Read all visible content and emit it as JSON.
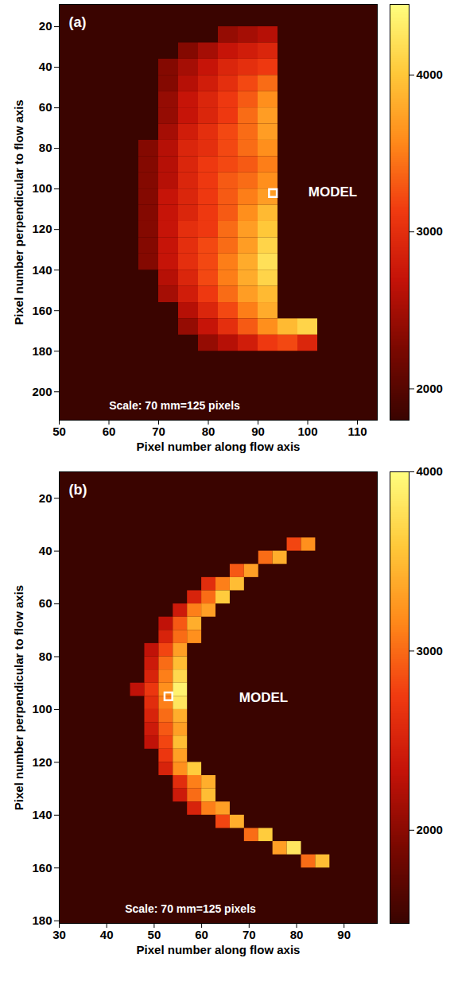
{
  "chart_data": [
    {
      "type": "heatmap",
      "panel_label": "(a)",
      "x_label": "Pixel number along flow axis",
      "y_label": "Pixel number perpendicular to flow axis",
      "xlim": [
        50,
        114
      ],
      "xticks": [
        50,
        60,
        70,
        80,
        90,
        100,
        110
      ],
      "ylim": [
        9,
        214
      ],
      "yticks": [
        20,
        40,
        60,
        80,
        100,
        120,
        140,
        160,
        180,
        200
      ],
      "x_edges": [
        66,
        70,
        74,
        78,
        82,
        86,
        90,
        94,
        98,
        102
      ],
      "y_edges": [
        20,
        28,
        36,
        44,
        52,
        60,
        68,
        76,
        84,
        92,
        100,
        108,
        116,
        124,
        132,
        140,
        148,
        156,
        164,
        172,
        180
      ],
      "cells": [
        [
          null,
          null,
          null,
          null,
          2400,
          2500,
          2600,
          null,
          null
        ],
        [
          null,
          null,
          2300,
          2500,
          2700,
          2800,
          2900,
          null,
          null
        ],
        [
          null,
          2300,
          2500,
          2700,
          2900,
          3000,
          3100,
          null,
          null
        ],
        [
          null,
          2300,
          2600,
          2800,
          3000,
          3200,
          3400,
          null,
          null
        ],
        [
          null,
          2400,
          2700,
          2900,
          3100,
          3300,
          3600,
          null,
          null
        ],
        [
          null,
          2400,
          2700,
          2900,
          3100,
          3400,
          3700,
          null,
          null
        ],
        [
          null,
          2500,
          2800,
          3000,
          3200,
          3400,
          3700,
          null,
          null
        ],
        [
          2300,
          2600,
          2900,
          3000,
          3200,
          3400,
          3600,
          null,
          null
        ],
        [
          2300,
          2600,
          2900,
          3100,
          3200,
          3300,
          3500,
          null,
          null
        ],
        [
          2300,
          2600,
          2900,
          3100,
          3300,
          3400,
          3600,
          null,
          null
        ],
        [
          2300,
          2700,
          2900,
          3100,
          3300,
          3500,
          3700,
          null,
          null
        ],
        [
          2300,
          2700,
          2900,
          3100,
          3300,
          3600,
          3900,
          null,
          null
        ],
        [
          2300,
          2700,
          3000,
          3100,
          3400,
          3700,
          4000,
          null,
          null
        ],
        [
          2300,
          2700,
          3000,
          3200,
          3400,
          3700,
          4100,
          null,
          null
        ],
        [
          2300,
          2700,
          3000,
          3200,
          3500,
          3800,
          4200,
          null,
          null
        ],
        [
          null,
          2600,
          2900,
          3200,
          3500,
          3800,
          4100,
          null,
          null
        ],
        [
          null,
          2500,
          2800,
          3100,
          3400,
          3700,
          3900,
          null,
          null
        ],
        [
          null,
          null,
          2600,
          2900,
          3200,
          3500,
          3800,
          null,
          null
        ],
        [
          null,
          null,
          2400,
          2700,
          3000,
          3300,
          3600,
          3900,
          4100
        ],
        [
          null,
          null,
          null,
          2400,
          2600,
          2800,
          3100,
          3200,
          2900
        ]
      ],
      "colorbar": {
        "range": [
          1800,
          4450
        ],
        "ticks": [
          2000,
          3000,
          4000
        ]
      },
      "marker_point": {
        "x": 93,
        "y": 102
      },
      "model_label": "MODEL",
      "scale_note": "Scale: 70 mm=125 pixels"
    },
    {
      "type": "heatmap",
      "panel_label": "(b)",
      "x_label": "Pixel number along flow axis",
      "y_label": "Pixel number perpendicular to flow axis",
      "xlim": [
        30,
        97
      ],
      "xticks": [
        30,
        40,
        50,
        60,
        70,
        80,
        90
      ],
      "ylim": [
        10,
        181
      ],
      "yticks": [
        20,
        40,
        60,
        80,
        100,
        120,
        140,
        160,
        180
      ],
      "x_edges": [
        45,
        48,
        51,
        54,
        57,
        60,
        63,
        66,
        69,
        72,
        75,
        78,
        81,
        84,
        87
      ],
      "y_edges": [
        35,
        40,
        45,
        50,
        55,
        60,
        65,
        70,
        75,
        80,
        85,
        90,
        95,
        100,
        105,
        110,
        115,
        120,
        125,
        130,
        135,
        140,
        145,
        150,
        155,
        160
      ],
      "cells": [
        [
          null,
          null,
          null,
          null,
          null,
          null,
          null,
          null,
          null,
          null,
          null,
          2800,
          3200,
          null
        ],
        [
          null,
          null,
          null,
          null,
          null,
          null,
          null,
          null,
          null,
          3000,
          3400,
          null,
          null,
          null
        ],
        [
          null,
          null,
          null,
          null,
          null,
          null,
          null,
          2900,
          3300,
          null,
          null,
          null,
          null,
          null
        ],
        [
          null,
          null,
          null,
          null,
          null,
          2600,
          3100,
          3500,
          null,
          null,
          null,
          null,
          null,
          null
        ],
        [
          null,
          null,
          null,
          null,
          2500,
          3000,
          3600,
          null,
          null,
          null,
          null,
          null,
          null,
          null
        ],
        [
          null,
          null,
          null,
          2400,
          3100,
          3300,
          null,
          null,
          null,
          null,
          null,
          null,
          null,
          null
        ],
        [
          null,
          null,
          2300,
          2900,
          3400,
          null,
          null,
          null,
          null,
          null,
          null,
          null,
          null,
          null
        ],
        [
          null,
          null,
          2500,
          3000,
          3200,
          null,
          null,
          null,
          null,
          null,
          null,
          null,
          null,
          null
        ],
        [
          null,
          2300,
          2800,
          3300,
          null,
          null,
          null,
          null,
          null,
          null,
          null,
          null,
          null,
          null
        ],
        [
          null,
          2400,
          3000,
          3500,
          null,
          null,
          null,
          null,
          null,
          null,
          null,
          null,
          null,
          null
        ],
        [
          null,
          2500,
          3100,
          3700,
          null,
          null,
          null,
          null,
          null,
          null,
          null,
          null,
          null,
          null
        ],
        [
          2300,
          2700,
          3200,
          3900,
          null,
          null,
          null,
          null,
          null,
          null,
          null,
          null,
          null,
          null
        ],
        [
          null,
          2600,
          3100,
          3800,
          null,
          null,
          null,
          null,
          null,
          null,
          null,
          null,
          null,
          null
        ],
        [
          null,
          2500,
          3000,
          3400,
          null,
          null,
          null,
          null,
          null,
          null,
          null,
          null,
          null,
          null
        ],
        [
          null,
          2400,
          2900,
          3300,
          null,
          null,
          null,
          null,
          null,
          null,
          null,
          null,
          null,
          null
        ],
        [
          null,
          2300,
          2800,
          3500,
          null,
          null,
          null,
          null,
          null,
          null,
          null,
          null,
          null,
          null
        ],
        [
          null,
          null,
          2700,
          3300,
          null,
          null,
          null,
          null,
          null,
          null,
          null,
          null,
          null,
          null
        ],
        [
          null,
          null,
          2500,
          3200,
          3600,
          null,
          null,
          null,
          null,
          null,
          null,
          null,
          null,
          null
        ],
        [
          null,
          null,
          null,
          2600,
          3100,
          3400,
          null,
          null,
          null,
          null,
          null,
          null,
          null,
          null
        ],
        [
          null,
          null,
          null,
          2400,
          3000,
          3500,
          null,
          null,
          null,
          null,
          null,
          null,
          null,
          null
        ],
        [
          null,
          null,
          null,
          null,
          2500,
          3100,
          3300,
          null,
          null,
          null,
          null,
          null,
          null,
          null
        ],
        [
          null,
          null,
          null,
          null,
          null,
          null,
          2800,
          3400,
          null,
          null,
          null,
          null,
          null,
          null
        ],
        [
          null,
          null,
          null,
          null,
          null,
          null,
          null,
          null,
          3000,
          3600,
          null,
          null,
          null,
          null
        ],
        [
          null,
          null,
          null,
          null,
          null,
          null,
          null,
          null,
          null,
          null,
          3300,
          3800,
          null,
          null
        ],
        [
          null,
          null,
          null,
          null,
          null,
          null,
          null,
          null,
          null,
          null,
          null,
          null,
          3000,
          3500
        ]
      ],
      "colorbar": {
        "range": [
          1480,
          4000
        ],
        "ticks": [
          2000,
          3000,
          4000
        ]
      },
      "marker_point": {
        "x": 53,
        "y": 95
      },
      "model_label": "MODEL",
      "scale_note": "Scale: 70 mm=125 pixels"
    }
  ]
}
